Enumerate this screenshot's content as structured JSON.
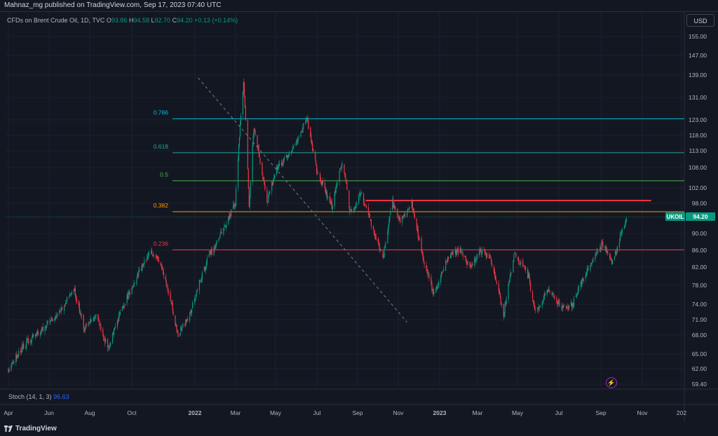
{
  "publisher": "Mahnaz_mg published on TradingView.com, Sep 17, 2023 07:40 UTC",
  "legend": {
    "symbol": "CFDs on Brent Crude Oil, 1D, TVC",
    "open_label": "O",
    "open": "93.86",
    "high_label": "H",
    "high": "94.58",
    "low_label": "L",
    "low": "92.70",
    "close_label": "C",
    "close": "94.20",
    "change": "+0.13 (+0.14%)"
  },
  "currency": "USD",
  "ticker_label": "UKOIL",
  "last_price": "94.20",
  "indicator": {
    "name": "Stoch (14, 1, 3)",
    "value": "96.63"
  },
  "brand": "TradingView",
  "colors": {
    "up": "#089981",
    "down": "#f23645",
    "bg": "#131722"
  },
  "chart_data": {
    "type": "candlestick",
    "symbol": "UKOIL",
    "price_scale": {
      "ticks": [
        "155.00",
        "147.00",
        "139.00",
        "131.00",
        "123.00",
        "118.00",
        "113.00",
        "108.00",
        "102.00",
        "98.00",
        "94.00",
        "90.00",
        "86.00",
        "82.00",
        "78.00",
        "74.00",
        "71.00",
        "68.00",
        "65.00",
        "62.00",
        "59.40"
      ]
    },
    "time_scale": {
      "ticks": [
        "Apr",
        "Jun",
        "Aug",
        "Oct",
        "2022",
        "Mar",
        "May",
        "Jul",
        "Sep",
        "Nov",
        "2023",
        "Mar",
        "May",
        "Jul",
        "Sep",
        "Nov",
        "202"
      ]
    },
    "fib_levels": [
      {
        "label": "0.786",
        "price": 123.4,
        "color": "#00bcd4"
      },
      {
        "label": "0.618",
        "price": 112.4,
        "color": "#26a69a"
      },
      {
        "label": "0.5",
        "price": 104.1,
        "color": "#4caf50"
      },
      {
        "label": "0.382",
        "price": 95.6,
        "color": "#ff9800"
      },
      {
        "label": "0.236",
        "price": 86.1,
        "color": "#f23645"
      }
    ],
    "horizontal_line": {
      "price": 98.7,
      "from": "2022-09-01",
      "to": "2023-10-20",
      "color": "#f23645"
    },
    "trendline": {
      "from": {
        "date": "2022-01-01",
        "price": 138.0
      },
      "to": {
        "date": "2022-10-31",
        "price": 70.5
      },
      "style": "dashed"
    },
    "path": [
      [
        "2021-04-01",
        62
      ],
      [
        "2021-04-20",
        66
      ],
      [
        "2021-05-15",
        68.5
      ],
      [
        "2021-06-10",
        72
      ],
      [
        "2021-07-05",
        77
      ],
      [
        "2021-07-20",
        69
      ],
      [
        "2021-08-05",
        72
      ],
      [
        "2021-08-23",
        65.5
      ],
      [
        "2021-09-10",
        72
      ],
      [
        "2021-10-05",
        80
      ],
      [
        "2021-10-25",
        86
      ],
      [
        "2021-11-10",
        82
      ],
      [
        "2021-11-26",
        72.5
      ],
      [
        "2021-12-02",
        68
      ],
      [
        "2021-12-20",
        72
      ],
      [
        "2022-01-15",
        84
      ],
      [
        "2022-02-10",
        92
      ],
      [
        "2022-02-24",
        98
      ],
      [
        "2022-03-08",
        137
      ],
      [
        "2022-03-16",
        97
      ],
      [
        "2022-03-23",
        121
      ],
      [
        "2022-04-11",
        98
      ],
      [
        "2022-04-25",
        108
      ],
      [
        "2022-05-15",
        112
      ],
      [
        "2022-06-08",
        123
      ],
      [
        "2022-06-22",
        107
      ],
      [
        "2022-07-14",
        97
      ],
      [
        "2022-07-29",
        110
      ],
      [
        "2022-08-10",
        95
      ],
      [
        "2022-08-25",
        101
      ],
      [
        "2022-09-10",
        92
      ],
      [
        "2022-09-26",
        84
      ],
      [
        "2022-10-10",
        98
      ],
      [
        "2022-10-21",
        93
      ],
      [
        "2022-11-07",
        98
      ],
      [
        "2022-11-20",
        86
      ],
      [
        "2022-12-09",
        76
      ],
      [
        "2022-12-28",
        84
      ],
      [
        "2023-01-15",
        86
      ],
      [
        "2023-01-30",
        82
      ],
      [
        "2023-02-15",
        86
      ],
      [
        "2023-03-01",
        84
      ],
      [
        "2023-03-20",
        72
      ],
      [
        "2023-04-05",
        85
      ],
      [
        "2023-04-25",
        80
      ],
      [
        "2023-05-04",
        72.5
      ],
      [
        "2023-05-25",
        77
      ],
      [
        "2023-06-12",
        73
      ],
      [
        "2023-06-28",
        74
      ],
      [
        "2023-07-15",
        80
      ],
      [
        "2023-08-10",
        87.5
      ],
      [
        "2023-08-25",
        83
      ],
      [
        "2023-09-14",
        94.2
      ]
    ]
  }
}
